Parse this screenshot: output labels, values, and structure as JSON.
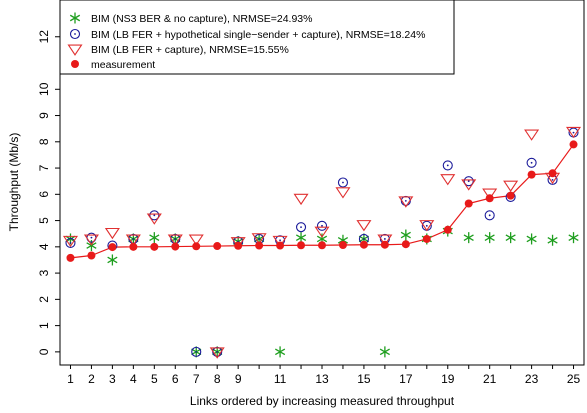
{
  "chart_data": {
    "type": "scatter",
    "xlabel": "Links ordered by increasing measured throughput",
    "ylabel": "Throughput (Mb/s)",
    "xlim": [
      0.5,
      25.5
    ],
    "ylim": [
      -0.5,
      13.4
    ],
    "x_ticks": [
      1,
      2,
      3,
      4,
      5,
      6,
      7,
      8,
      9,
      11,
      13,
      15,
      17,
      19,
      21,
      23,
      25
    ],
    "y_ticks": [
      0,
      1,
      2,
      3,
      4,
      5,
      6,
      7,
      8,
      9,
      10,
      12
    ],
    "legend_position": "top-left",
    "grid": false,
    "x": [
      1,
      2,
      3,
      4,
      5,
      6,
      7,
      8,
      9,
      10,
      11,
      12,
      13,
      14,
      15,
      16,
      17,
      18,
      19,
      20,
      21,
      22,
      23,
      24,
      25
    ],
    "series": [
      {
        "name": "BIM (NS3 BER & no capture), NRMSE=24.93%",
        "marker": "asterisk",
        "color": "#1e9e1e",
        "values": [
          4.3,
          4.05,
          3.5,
          4.3,
          4.35,
          4.3,
          0.0,
          0.0,
          4.2,
          4.3,
          0.0,
          4.35,
          4.3,
          4.25,
          4.3,
          0.0,
          4.45,
          4.3,
          4.6,
          4.35,
          4.35,
          4.35,
          4.3,
          4.25,
          4.35
        ]
      },
      {
        "name": "BIM (LB FER + hypothetical single−sender + capture), NRMSE=18.24%",
        "marker": "circle",
        "color": "#1a1a9a",
        "values": [
          4.15,
          4.35,
          4.05,
          4.3,
          5.2,
          4.3,
          0.0,
          0.0,
          4.2,
          4.3,
          4.25,
          4.75,
          4.8,
          6.45,
          4.3,
          4.3,
          5.75,
          4.8,
          7.1,
          6.5,
          5.2,
          5.9,
          7.2,
          6.55,
          8.35
        ]
      },
      {
        "name": "BIM (LB FER + capture), NRMSE=15.55%",
        "marker": "triangle-down",
        "color": "#e03030",
        "values": [
          4.25,
          4.3,
          4.55,
          4.3,
          5.1,
          4.3,
          4.3,
          0.0,
          4.2,
          4.35,
          4.25,
          5.85,
          4.6,
          6.1,
          4.85,
          4.3,
          5.75,
          4.85,
          6.6,
          6.4,
          6.05,
          6.35,
          8.3,
          6.65,
          8.4
        ]
      },
      {
        "name": "measurement",
        "marker": "filled-circle-line",
        "color": "#e81a1a",
        "values": [
          3.58,
          3.67,
          3.99,
          4.0,
          4.0,
          4.01,
          4.02,
          4.03,
          4.04,
          4.05,
          4.05,
          4.06,
          4.06,
          4.07,
          4.08,
          4.08,
          4.1,
          4.3,
          4.65,
          5.65,
          5.85,
          5.95,
          6.75,
          6.8,
          7.9
        ]
      }
    ]
  }
}
